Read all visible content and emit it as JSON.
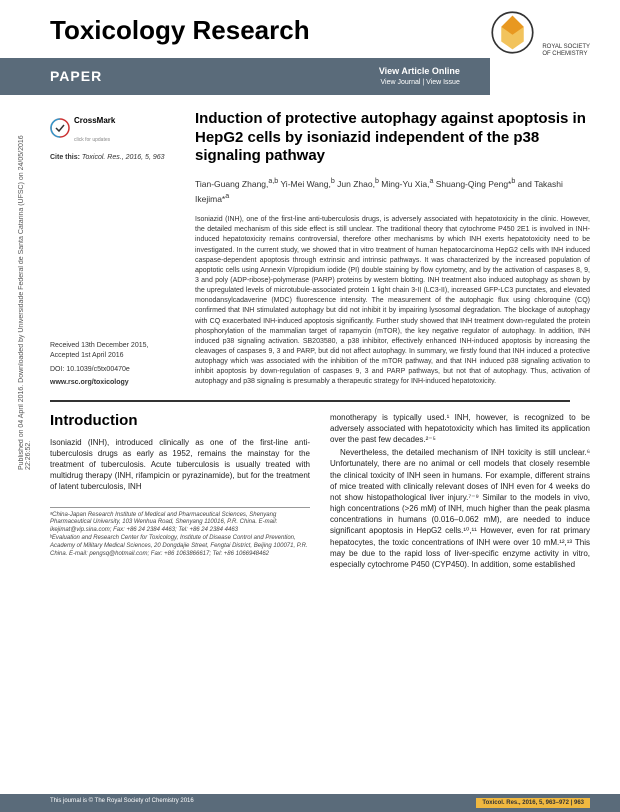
{
  "sidebar": {
    "text": "Published on 04 April 2016. Downloaded by Universidade Federal de Santa Catarina (UFSC) on 24/05/2016 22:26:52."
  },
  "header": {
    "journal_title": "Toxicology Research",
    "publisher_line1": "ROYAL SOCIETY",
    "publisher_line2": "OF CHEMISTRY"
  },
  "paper_bar": {
    "label": "PAPER",
    "view_online": "View Article Online",
    "view_journal": "View Journal | View Issue"
  },
  "meta": {
    "crossmark_label": "CrossMark",
    "crossmark_sub": "click for updates",
    "cite_prefix": "Cite this: ",
    "cite_text": "Toxicol. Res., 2016, 5, 963",
    "received": "Received 13th December 2015,",
    "accepted": "Accepted 1st April 2016",
    "doi": "DOI: 10.1039/c5tx00470e",
    "url": "www.rsc.org/toxicology"
  },
  "article": {
    "title": "Induction of protective autophagy against apoptosis in HepG2 cells by isoniazid independent of the p38 signaling pathway",
    "authors_html": "Tian-Guang Zhang,<sup>a,b</sup> Yi-Mei Wang,<sup>b</sup> Jun Zhao,<sup>b</sup> Ming-Yu Xia,<sup>a</sup> Shuang-Qing Peng*<sup>b</sup> and Takashi Ikejima*<sup>a</sup>",
    "abstract": "Isoniazid (INH), one of the first-line anti-tuberculosis drugs, is adversely associated with hepatotoxicity in the clinic. However, the detailed mechanism of this side effect is still unclear. The traditional theory that cytochrome P450 2E1 is involved in INH-induced hepatotoxicity remains controversial, therefore other mechanisms by which INH exerts hepatotoxicity need to be investigated. In the current study, we showed that in vitro treatment of human hepatocarcinoma HepG2 cells with INH induced caspase-dependent apoptosis through extrinsic and intrinsic pathways. It was characterized by the increased population of apoptotic cells using Annexin V/propidium iodide (PI) double staining by flow cytometry, and by the activation of caspases 8, 9, 3 and poly (ADP-ribose)-polymerase (PARP) proteins by western blotting. INH treatment also induced autophagy as shown by the upregulated levels of microtubule-associated protein 1 light chain 3-II (LC3-II), increased GFP-LC3 punctates, and elevated monodansylcadaverine (MDC) fluorescence intensity. The measurement of the autophagic flux using chloroquine (CQ) confirmed that INH stimulated autophagy but did not inhibit it by impairing lysosomal degradation. The blockage of autophagy with CQ exacerbated INH-induced apoptosis significantly. Further study showed that INH treatment down-regulated the protein phosphorylation of the mammalian target of rapamycin (mTOR), the key negative regulator of autophagy. In addition, INH induced p38 signaling activation. SB203580, a p38 inhibitor, effectively enhanced INH-induced apoptosis by increasing the cleavages of caspases 9, 3 and PARP, but did not affect autophagy. In summary, we firstly found that INH induced a protective autophagy which was associated with the inhibition of the mTOR pathway, and that INH induced p38 signaling activation to inhibit apoptosis by down-regulation of caspases 9, 3 and PARP pathways, but not that of autophagy. Thus, activation of autophagy and p38 signaling is presumably a therapeutic strategy for INH-induced hepatotoxicity."
  },
  "intro": {
    "heading": "Introduction",
    "col1_p1": "Isoniazid (INH), introduced clinically as one of the first-line anti-tuberculosis drugs as early as 1952, remains the mainstay for the treatment of tuberculosis. Acute tuberculosis is usually treated with multidrug therapy (INH, rifampicin or pyrazinamide), but for the treatment of latent tuberculosis, INH",
    "col2_p1": "monotherapy is typically used.¹ INH, however, is recognized to be adversely associated with hepatotoxicity which has limited its application over the past few decades.²⁻⁵",
    "col2_p2": "Nevertheless, the detailed mechanism of INH toxicity is still unclear.⁶ Unfortunately, there are no animal or cell models that closely resemble the clinical toxicity of INH seen in humans. For example, different strains of mice treated with clinically relevant doses of INH even for 4 weeks do not show histopathological liver injury.⁷⁻⁹ Similar to the models in vivo, high concentrations (>26 mM) of INH, much higher than the peak plasma concentrations in humans (0.016–0.062 mM), are needed to induce significant apoptosis in HepG2 cells.¹⁰,¹¹ However, even for rat primary hepatocytes, the toxic concentrations of INH were over 10 mM.¹²,¹³ This may be due to the rapid loss of liver-specific enzyme activity in vitro, especially cytochrome P450 (CYP450). In addition, some established"
  },
  "affiliations": {
    "a": "ᵃChina-Japan Research Institute of Medical and Pharmaceutical Sciences, Shenyang Pharmaceutical University, 103 Wenhua Road, Shenyang 110016, P.R. China. E-mail: ikejimat@vip.sina.com; Fax: +86 24 2384 4463; Tel: +86 24 2384 4463",
    "b": "ᵇEvaluation and Research Center for Toxicology, Institute of Disease Control and Prevention, Academy of Military Medical Sciences, 20 Dongdajie Street, Fengtai District, Beijing 100071, P.R. China. E-mail: pengsq@hotmail.com; Fax: +86 1063866617; Tel: +86 1066948462"
  },
  "footer": {
    "left": "This journal is © The Royal Society of Chemistry 2016",
    "right": "Toxicol. Res., 2016, 5, 963–972 | 963"
  },
  "colors": {
    "bar_bg": "#5a6b7a",
    "accent": "#f0b840"
  }
}
